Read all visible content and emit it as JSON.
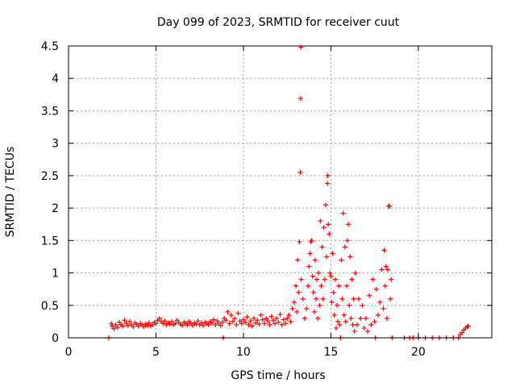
{
  "chart_data": {
    "type": "scatter",
    "title": "Day 099 of 2023, SRMTID for receiver cuut",
    "xlabel": "GPS time / hours",
    "ylabel": "SRMTID / TECUs",
    "xlim": [
      0,
      24.2
    ],
    "ylim": [
      0,
      4.5
    ],
    "x_ticks": [
      "0",
      "5",
      "10",
      "15",
      "20"
    ],
    "x_tick_values": [
      0,
      5,
      10,
      15,
      20
    ],
    "y_ticks": [
      "0",
      "0.5",
      "1",
      "1.5",
      "2",
      "2.5",
      "3",
      "3.5",
      "4",
      "4.5"
    ],
    "y_tick_values": [
      0,
      0.5,
      1,
      1.5,
      2,
      2.5,
      3,
      3.5,
      4,
      4.5
    ],
    "grid": true,
    "marker": "+",
    "color": "#ff0000",
    "series": [
      {
        "name": "SRMTID",
        "points": [
          [
            2.3,
            0.0
          ],
          [
            2.45,
            0.22
          ],
          [
            2.5,
            0.18
          ],
          [
            2.6,
            0.14
          ],
          [
            2.7,
            0.2
          ],
          [
            2.8,
            0.16
          ],
          [
            2.9,
            0.24
          ],
          [
            3.0,
            0.2
          ],
          [
            3.1,
            0.18
          ],
          [
            3.2,
            0.27
          ],
          [
            3.3,
            0.22
          ],
          [
            3.4,
            0.19
          ],
          [
            3.5,
            0.25
          ],
          [
            3.6,
            0.2
          ],
          [
            3.7,
            0.17
          ],
          [
            3.8,
            0.23
          ],
          [
            3.9,
            0.21
          ],
          [
            4.0,
            0.18
          ],
          [
            4.1,
            0.22
          ],
          [
            4.2,
            0.2
          ],
          [
            4.3,
            0.17
          ],
          [
            4.4,
            0.21
          ],
          [
            4.5,
            0.19
          ],
          [
            4.6,
            0.23
          ],
          [
            4.7,
            0.18
          ],
          [
            4.8,
            0.2
          ],
          [
            4.9,
            0.24
          ],
          [
            5.0,
            0.22
          ],
          [
            5.1,
            0.27
          ],
          [
            5.2,
            0.3
          ],
          [
            5.3,
            0.25
          ],
          [
            5.4,
            0.22
          ],
          [
            5.5,
            0.26
          ],
          [
            5.6,
            0.2
          ],
          [
            5.7,
            0.23
          ],
          [
            5.8,
            0.21
          ],
          [
            5.9,
            0.25
          ],
          [
            6.0,
            0.2
          ],
          [
            6.1,
            0.22
          ],
          [
            6.2,
            0.27
          ],
          [
            6.3,
            0.24
          ],
          [
            6.4,
            0.21
          ],
          [
            6.5,
            0.19
          ],
          [
            6.6,
            0.24
          ],
          [
            6.7,
            0.22
          ],
          [
            6.8,
            0.2
          ],
          [
            6.9,
            0.25
          ],
          [
            7.0,
            0.22
          ],
          [
            7.1,
            0.19
          ],
          [
            7.2,
            0.23
          ],
          [
            7.3,
            0.21
          ],
          [
            7.4,
            0.26
          ],
          [
            7.5,
            0.2
          ],
          [
            7.6,
            0.23
          ],
          [
            7.7,
            0.19
          ],
          [
            7.8,
            0.24
          ],
          [
            7.9,
            0.22
          ],
          [
            8.0,
            0.2
          ],
          [
            8.1,
            0.25
          ],
          [
            8.2,
            0.23
          ],
          [
            8.3,
            0.28
          ],
          [
            8.4,
            0.2
          ],
          [
            8.5,
            0.26
          ],
          [
            8.6,
            0.22
          ],
          [
            8.7,
            0.19
          ],
          [
            8.8,
            0.24
          ],
          [
            8.85,
            0.0
          ],
          [
            8.9,
            0.3
          ],
          [
            9.0,
            0.27
          ],
          [
            9.1,
            0.4
          ],
          [
            9.2,
            0.22
          ],
          [
            9.3,
            0.35
          ],
          [
            9.4,
            0.25
          ],
          [
            9.5,
            0.3
          ],
          [
            9.6,
            0.2
          ],
          [
            9.7,
            0.38
          ],
          [
            9.8,
            0.26
          ],
          [
            9.9,
            0.22
          ],
          [
            10.0,
            0.28
          ],
          [
            10.1,
            0.24
          ],
          [
            10.2,
            0.32
          ],
          [
            10.3,
            0.2
          ],
          [
            10.4,
            0.26
          ],
          [
            10.5,
            0.18
          ],
          [
            10.6,
            0.3
          ],
          [
            10.7,
            0.23
          ],
          [
            10.8,
            0.27
          ],
          [
            10.9,
            0.21
          ],
          [
            11.0,
            0.35
          ],
          [
            11.1,
            0.28
          ],
          [
            11.2,
            0.22
          ],
          [
            11.3,
            0.3
          ],
          [
            11.4,
            0.26
          ],
          [
            11.5,
            0.2
          ],
          [
            11.6,
            0.33
          ],
          [
            11.7,
            0.27
          ],
          [
            11.8,
            0.22
          ],
          [
            11.9,
            0.3
          ],
          [
            12.0,
            0.24
          ],
          [
            12.1,
            0.36
          ],
          [
            12.2,
            0.2
          ],
          [
            12.3,
            0.28
          ],
          [
            12.4,
            0.22
          ],
          [
            12.5,
            0.3
          ],
          [
            12.6,
            0.35
          ],
          [
            12.7,
            0.25
          ],
          [
            12.8,
            0.45
          ],
          [
            12.9,
            0.55
          ],
          [
            13.0,
            0.8
          ],
          [
            13.05,
            0.4
          ],
          [
            13.1,
            1.2
          ],
          [
            13.15,
            0.7
          ],
          [
            13.2,
            1.48
          ],
          [
            13.25,
            2.55
          ],
          [
            13.27,
            3.69
          ],
          [
            13.29,
            4.48
          ],
          [
            13.3,
            0.9
          ],
          [
            13.4,
            0.6
          ],
          [
            13.5,
            0.3
          ],
          [
            13.6,
            0.45
          ],
          [
            13.7,
            0.8
          ],
          [
            13.75,
            1.1
          ],
          [
            13.8,
            1.3
          ],
          [
            13.85,
            1.48
          ],
          [
            13.9,
            1.5
          ],
          [
            13.95,
            0.95
          ],
          [
            14.0,
            0.7
          ],
          [
            14.05,
            0.4
          ],
          [
            14.1,
            1.2
          ],
          [
            14.15,
            0.6
          ],
          [
            14.2,
            0.9
          ],
          [
            14.25,
            0.3
          ],
          [
            14.3,
            1.0
          ],
          [
            14.35,
            0.5
          ],
          [
            14.4,
            1.8
          ],
          [
            14.45,
            0.8
          ],
          [
            14.5,
            1.4
          ],
          [
            14.55,
            0.6
          ],
          [
            14.6,
            1.7
          ],
          [
            14.65,
            0.9
          ],
          [
            14.7,
            2.05
          ],
          [
            14.75,
            1.25
          ],
          [
            14.8,
            2.38
          ],
          [
            14.82,
            2.5
          ],
          [
            14.85,
            1.75
          ],
          [
            14.9,
            1.6
          ],
          [
            14.95,
            1.0
          ],
          [
            15.0,
            0.95
          ],
          [
            15.05,
            0.55
          ],
          [
            15.1,
            1.3
          ],
          [
            15.15,
            0.7
          ],
          [
            15.2,
            0.35
          ],
          [
            15.25,
            0.9
          ],
          [
            15.3,
            0.15
          ],
          [
            15.35,
            0.5
          ],
          [
            15.4,
            0.25
          ],
          [
            15.45,
            0.8
          ],
          [
            15.5,
            0.2
          ],
          [
            15.55,
            0.0
          ],
          [
            15.6,
            1.2
          ],
          [
            15.65,
            0.6
          ],
          [
            15.7,
            1.92
          ],
          [
            15.75,
            0.35
          ],
          [
            15.8,
            1.4
          ],
          [
            15.85,
            0.25
          ],
          [
            15.9,
            0.8
          ],
          [
            15.95,
            1.5
          ],
          [
            16.0,
            1.75
          ],
          [
            16.05,
            0.5
          ],
          [
            16.1,
            1.25
          ],
          [
            16.15,
            0.3
          ],
          [
            16.2,
            0.9
          ],
          [
            16.25,
            0.2
          ],
          [
            16.3,
            0.6
          ],
          [
            16.35,
            0.1
          ],
          [
            16.4,
            1.0
          ],
          [
            16.5,
            0.2
          ],
          [
            16.6,
            0.6
          ],
          [
            16.7,
            0.3
          ],
          [
            16.8,
            0.5
          ],
          [
            16.9,
            0.15
          ],
          [
            17.0,
            0.3
          ],
          [
            17.1,
            0.1
          ],
          [
            17.2,
            0.65
          ],
          [
            17.3,
            0.2
          ],
          [
            17.4,
            0.9
          ],
          [
            17.5,
            0.25
          ],
          [
            17.55,
            0.0
          ],
          [
            17.6,
            0.75
          ],
          [
            17.7,
            0.35
          ],
          [
            17.8,
            0.55
          ],
          [
            17.9,
            1.05
          ],
          [
            18.0,
            0.45
          ],
          [
            18.05,
            1.35
          ],
          [
            18.1,
            0.8
          ],
          [
            18.15,
            1.1
          ],
          [
            18.2,
            0.3
          ],
          [
            18.25,
            1.05
          ],
          [
            18.3,
            2.03
          ],
          [
            18.35,
            2.03
          ],
          [
            18.4,
            0.6
          ],
          [
            18.45,
            0.9
          ],
          [
            18.5,
            0.0
          ],
          [
            19.2,
            0.0
          ],
          [
            19.5,
            0.0
          ],
          [
            19.7,
            0.0
          ],
          [
            20.0,
            0.0
          ],
          [
            20.4,
            0.0
          ],
          [
            20.8,
            0.0
          ],
          [
            21.2,
            0.0
          ],
          [
            21.6,
            0.0
          ],
          [
            22.0,
            0.0
          ],
          [
            22.3,
            0.0
          ],
          [
            22.4,
            0.05
          ],
          [
            22.5,
            0.08
          ],
          [
            22.6,
            0.12
          ],
          [
            22.7,
            0.15
          ],
          [
            22.8,
            0.17
          ],
          [
            22.85,
            0.18
          ]
        ]
      }
    ]
  }
}
